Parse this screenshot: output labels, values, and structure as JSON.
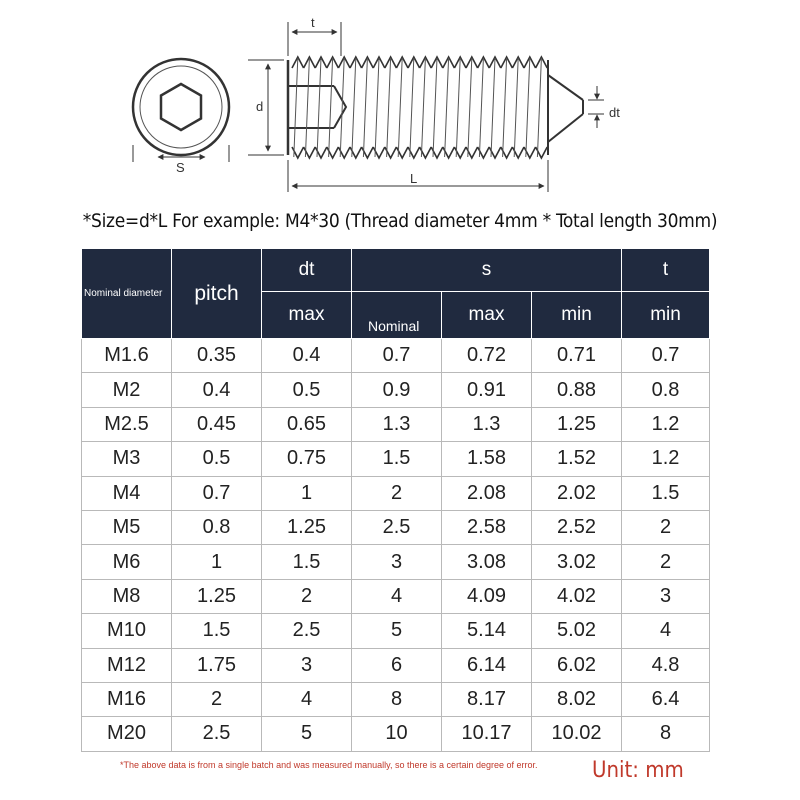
{
  "diagram": {
    "labels": {
      "t": "t",
      "d": "d",
      "dt": "dt",
      "s": "S",
      "L": "L"
    }
  },
  "caption": "*Size=d*L For example: M4*30 (Thread diameter 4mm * Total length 30mm)",
  "table": {
    "headers": {
      "nominal_diameter": "Nominal diameter",
      "pitch": "pitch",
      "dt": "dt",
      "s": "s",
      "t": "t",
      "max": "max",
      "nominal": "Nominal",
      "min": "min"
    },
    "rows": [
      [
        "M1.6",
        "0.35",
        "0.4",
        "0.7",
        "0.72",
        "0.71",
        "0.7"
      ],
      [
        "M2",
        "0.4",
        "0.5",
        "0.9",
        "0.91",
        "0.88",
        "0.8"
      ],
      [
        "M2.5",
        "0.45",
        "0.65",
        "1.3",
        "1.3",
        "1.25",
        "1.2"
      ],
      [
        "M3",
        "0.5",
        "0.75",
        "1.5",
        "1.58",
        "1.52",
        "1.2"
      ],
      [
        "M4",
        "0.7",
        "1",
        "2",
        "2.08",
        "2.02",
        "1.5"
      ],
      [
        "M5",
        "0.8",
        "1.25",
        "2.5",
        "2.58",
        "2.52",
        "2"
      ],
      [
        "M6",
        "1",
        "1.5",
        "3",
        "3.08",
        "3.02",
        "2"
      ],
      [
        "M8",
        "1.25",
        "2",
        "4",
        "4.09",
        "4.02",
        "3"
      ],
      [
        "M10",
        "1.5",
        "2.5",
        "5",
        "5.14",
        "5.02",
        "4"
      ],
      [
        "M12",
        "1.75",
        "3",
        "6",
        "6.14",
        "6.02",
        "4.8"
      ],
      [
        "M16",
        "2",
        "4",
        "8",
        "8.17",
        "8.02",
        "6.4"
      ],
      [
        "M20",
        "2.5",
        "5",
        "10",
        "10.17",
        "10.02",
        "8"
      ]
    ]
  },
  "note": "*The above data is from a single batch and was measured manually, so there is a certain degree of error.",
  "unit": "Unit: mm"
}
